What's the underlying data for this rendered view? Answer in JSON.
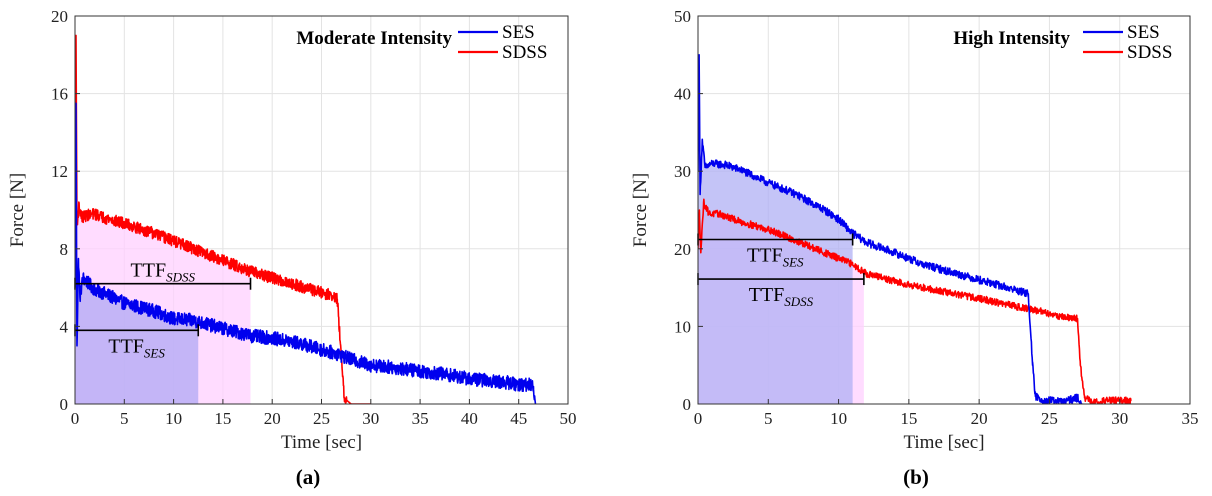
{
  "chart_data": [
    {
      "type": "line",
      "title": "Moderate Intensity",
      "caption": "(a)",
      "xlabel": "Time [sec]",
      "ylabel": "Force [N]",
      "xlim": [
        0,
        50
      ],
      "ylim": [
        0,
        20
      ],
      "xticks": [
        0,
        5,
        10,
        15,
        20,
        25,
        30,
        35,
        40,
        45,
        50
      ],
      "yticks": [
        0,
        4,
        8,
        12,
        16,
        20
      ],
      "grid": true,
      "legend_position": "top-right",
      "series": [
        {
          "name": "SES",
          "color": "#0000ee",
          "x": [
            0,
            0.1,
            0.2,
            0.35,
            0.5,
            0.8,
            1.2,
            2,
            3,
            5,
            8,
            10,
            12,
            15,
            18,
            20,
            23,
            25,
            26.5,
            27,
            28,
            30,
            32,
            35,
            38,
            40,
            42,
            44,
            45,
            46,
            46.5,
            46.7
          ],
          "y": [
            6,
            15.5,
            3,
            7.5,
            5.5,
            6.5,
            6.3,
            5.9,
            5.7,
            5.2,
            4.8,
            4.4,
            4.3,
            3.9,
            3.5,
            3.4,
            3.1,
            2.8,
            2.6,
            2.5,
            2.3,
            2.0,
            1.9,
            1.7,
            1.5,
            1.3,
            1.2,
            1.1,
            1.0,
            1.0,
            0.9,
            0
          ],
          "noise": 0.35
        },
        {
          "name": "SDSS",
          "color": "#ff0000",
          "x": [
            0,
            0.1,
            0.2,
            0.4,
            0.7,
            1,
            2,
            3,
            5,
            8,
            10,
            12,
            14,
            16,
            18,
            20,
            22,
            24,
            26,
            26.6,
            27,
            27.3,
            28,
            30
          ],
          "y": [
            9,
            19,
            9.3,
            10.2,
            9.6,
            9.7,
            9.8,
            9.6,
            9.3,
            8.8,
            8.4,
            8.0,
            7.6,
            7.2,
            6.8,
            6.5,
            6.2,
            5.9,
            5.6,
            5.4,
            2.5,
            0.3,
            0,
            0
          ],
          "noise": 0.3
        }
      ],
      "shaded": [
        {
          "series": "SDSS",
          "x_end": 17.8,
          "color": "#ffd0ff"
        },
        {
          "series": "SES",
          "x_end": 12.5,
          "color": "#b0a8f4"
        }
      ],
      "ttf_markers": [
        {
          "label": "TTF",
          "sub": "SDSS",
          "x_end": 17.8,
          "y": 6.2
        },
        {
          "label": "TTF",
          "sub": "SES",
          "x_end": 12.5,
          "y": 3.8
        }
      ]
    },
    {
      "type": "line",
      "title": "High Intensity",
      "caption": "(b)",
      "xlabel": "Time [sec]",
      "ylabel": "Force [N]",
      "xlim": [
        0,
        35
      ],
      "ylim": [
        0,
        50
      ],
      "xticks": [
        0,
        5,
        10,
        15,
        20,
        25,
        30,
        35
      ],
      "yticks": [
        0,
        10,
        20,
        30,
        40,
        50
      ],
      "grid": true,
      "legend_position": "top-right",
      "series": [
        {
          "name": "SES",
          "color": "#0000ee",
          "x": [
            0,
            0.08,
            0.15,
            0.3,
            0.5,
            1,
            2,
            3,
            5,
            7,
            9,
            10,
            11,
            12,
            14,
            16,
            18,
            20,
            22,
            23.5,
            23.8,
            24,
            24.5,
            26,
            27,
            27.3
          ],
          "y": [
            30,
            45,
            27,
            34,
            30.5,
            31,
            30.8,
            30.2,
            28.5,
            27,
            25,
            23.8,
            22,
            20.8,
            19.5,
            18,
            17,
            16,
            15,
            14.2,
            5,
            1,
            0.5,
            0.3,
            0.8,
            0
          ],
          "noise": 0.5
        },
        {
          "name": "SDSS",
          "color": "#ff0000",
          "x": [
            0,
            0.1,
            0.2,
            0.4,
            0.8,
            1.5,
            3,
            5,
            7,
            9,
            11,
            12,
            14,
            16,
            18,
            20,
            22,
            24,
            26,
            27,
            27.2,
            27.5,
            28,
            30,
            30.8
          ],
          "y": [
            20,
            25,
            19.5,
            26,
            24.5,
            24.5,
            23.5,
            22.5,
            21,
            19.5,
            18,
            16.8,
            15.8,
            15,
            14.3,
            13.6,
            12.8,
            12.1,
            11.2,
            11,
            5,
            0.8,
            0.3,
            0.5,
            0.4
          ],
          "noise": 0.45
        }
      ],
      "shaded": [
        {
          "series": "SDSS",
          "x_end": 11.8,
          "color": "#ffd0ff"
        },
        {
          "series": "SES",
          "x_end": 11.0,
          "color": "#b0b0f4"
        }
      ],
      "ttf_markers": [
        {
          "label": "TTF",
          "sub": "SES",
          "x_end": 11.0,
          "y": 21.2
        },
        {
          "label": "TTF",
          "sub": "SDSS",
          "x_end": 11.8,
          "y": 16.1
        }
      ]
    }
  ]
}
